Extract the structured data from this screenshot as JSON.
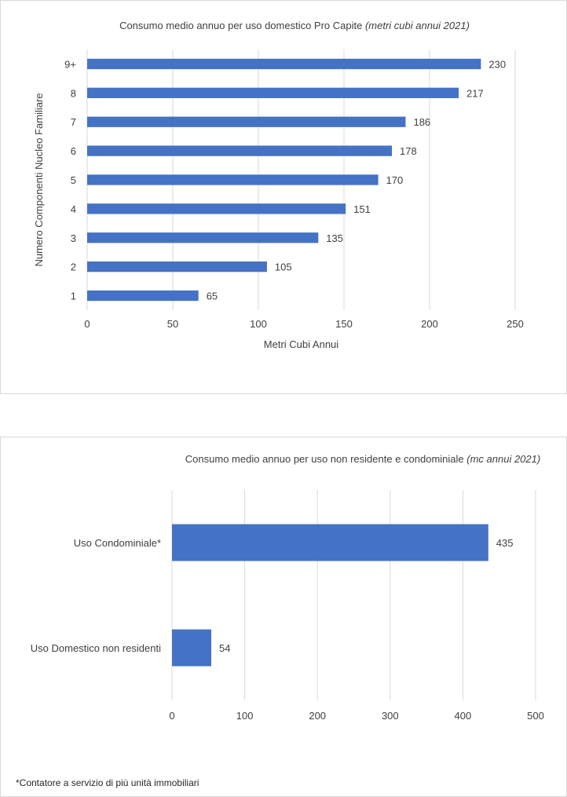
{
  "chart_data": [
    {
      "type": "bar",
      "orientation": "horizontal",
      "title": "Consumo medio annuo per uso domestico Pro Capite",
      "title_italic": "(metri cubi annui 2021)",
      "xlabel": "Metri Cubi Annui",
      "ylabel": "Numero Componenti Nucleo Familiare",
      "categories": [
        "9+",
        "8",
        "7",
        "6",
        "5",
        "4",
        "3",
        "2",
        "1"
      ],
      "values": [
        230,
        217,
        186,
        178,
        170,
        151,
        135,
        105,
        65
      ],
      "xlim": [
        0,
        250
      ],
      "xticks": [
        "0",
        "50",
        "100",
        "150",
        "200",
        "250"
      ],
      "grid": "vertical",
      "bar_color": "#4472c4",
      "data_labels": true
    },
    {
      "type": "bar",
      "orientation": "horizontal",
      "title": "Consumo medio annuo per uso non residente e condominiale",
      "title_italic": "(mc annui 2021)",
      "categories": [
        "Uso Condominiale*",
        "Uso Domestico non residenti"
      ],
      "values": [
        435,
        54
      ],
      "xlim": [
        0,
        500
      ],
      "xticks": [
        "0",
        "100",
        "200",
        "300",
        "400",
        "500"
      ],
      "grid": "vertical",
      "bar_color": "#4472c4",
      "data_labels": true
    }
  ],
  "footnote": "*Contatore a servizio di più unità immobiliari"
}
